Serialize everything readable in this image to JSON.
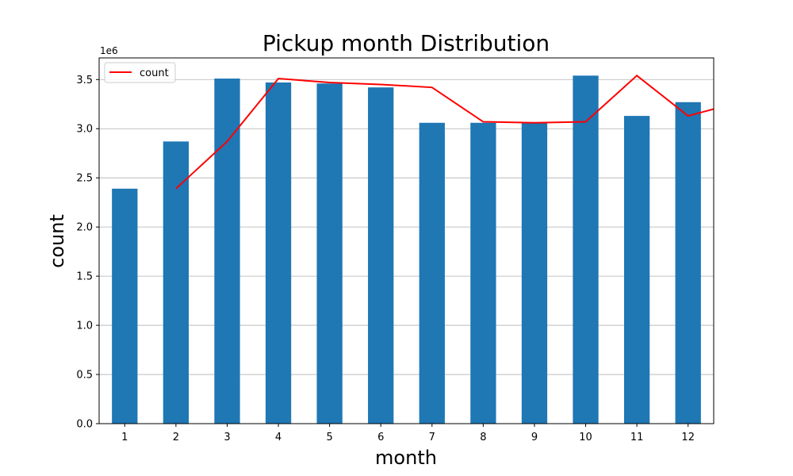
{
  "chart_data": {
    "type": "bar",
    "title": "Pickup month Distribution",
    "xlabel": "month",
    "ylabel": "count",
    "y_offset_label": "1e6",
    "categories": [
      "1",
      "2",
      "3",
      "4",
      "5",
      "6",
      "7",
      "8",
      "9",
      "10",
      "11",
      "12"
    ],
    "y_ticks": [
      "0.0",
      "0.5",
      "1.0",
      "1.5",
      "2.0",
      "2.5",
      "3.0",
      "3.5"
    ],
    "ylim": [
      0,
      3.72
    ],
    "grid": "y",
    "legend": {
      "position": "upper-left",
      "entries": [
        "count"
      ]
    },
    "series": [
      {
        "kind": "bar",
        "color": "#1f77b4",
        "values": [
          2.39,
          2.87,
          3.51,
          3.47,
          3.46,
          3.42,
          3.06,
          3.06,
          3.06,
          3.54,
          3.13,
          3.27
        ]
      },
      {
        "kind": "line",
        "name": "count",
        "color": "#ff0000",
        "x": [
          2,
          3,
          4,
          5,
          6,
          7,
          8,
          9,
          10,
          11,
          12,
          13
        ],
        "values": [
          2.39,
          2.87,
          3.51,
          3.47,
          3.45,
          3.42,
          3.07,
          3.06,
          3.07,
          3.54,
          3.13,
          3.27
        ]
      }
    ]
  }
}
